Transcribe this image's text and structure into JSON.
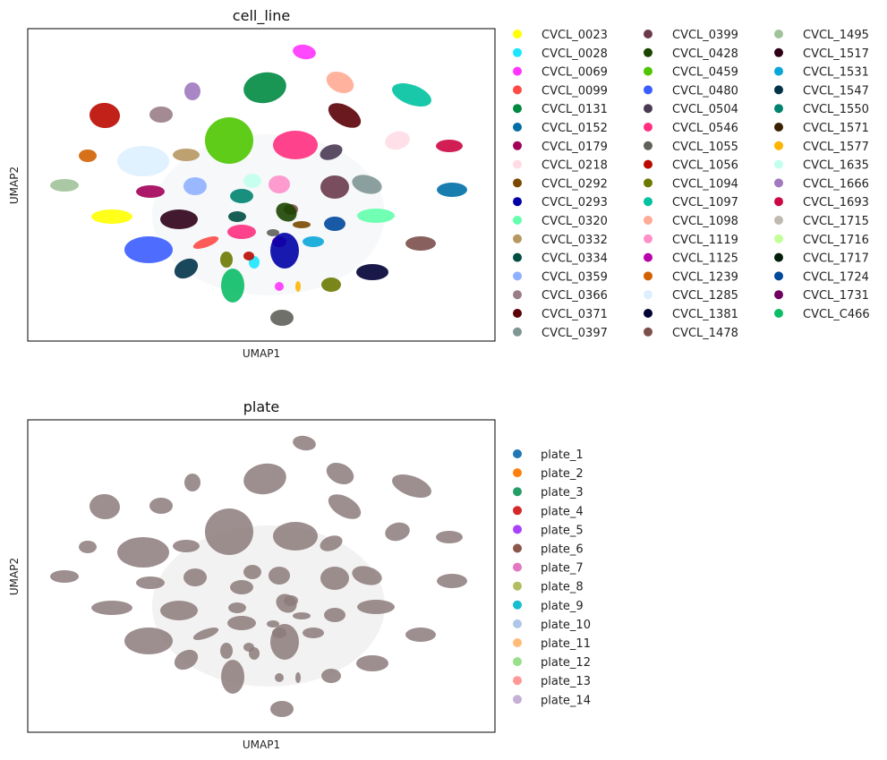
{
  "chart_data": [
    {
      "type": "scatter",
      "title": "cell_line",
      "xlabel": "UMAP1",
      "ylabel": "UMAP2",
      "grid": false,
      "ticks": false,
      "legend_placement": "right, 3 columns",
      "legend": [
        {
          "name": "CVCL_0023",
          "color": "#ffff00"
        },
        {
          "name": "CVCL_0028",
          "color": "#1ce6ff"
        },
        {
          "name": "CVCL_0069",
          "color": "#ff34ff"
        },
        {
          "name": "CVCL_0099",
          "color": "#ff4a46"
        },
        {
          "name": "CVCL_0131",
          "color": "#008941"
        },
        {
          "name": "CVCL_0152",
          "color": "#006fa6"
        },
        {
          "name": "CVCL_0179",
          "color": "#a30059"
        },
        {
          "name": "CVCL_0218",
          "color": "#ffdbe5"
        },
        {
          "name": "CVCL_0292",
          "color": "#7a4900"
        },
        {
          "name": "CVCL_0293",
          "color": "#0000a6"
        },
        {
          "name": "CVCL_0320",
          "color": "#63ffac"
        },
        {
          "name": "CVCL_0332",
          "color": "#b79762"
        },
        {
          "name": "CVCL_0334",
          "color": "#004d43"
        },
        {
          "name": "CVCL_0359",
          "color": "#8fb0ff"
        },
        {
          "name": "CVCL_0366",
          "color": "#997d87"
        },
        {
          "name": "CVCL_0371",
          "color": "#5a0007"
        },
        {
          "name": "CVCL_0397",
          "color": "#809693"
        },
        {
          "name": "CVCL_0399",
          "color": "#6a3a4c"
        },
        {
          "name": "CVCL_0428",
          "color": "#1b4400"
        },
        {
          "name": "CVCL_0459",
          "color": "#4fc601"
        },
        {
          "name": "CVCL_0480",
          "color": "#3b5dff"
        },
        {
          "name": "CVCL_0504",
          "color": "#4a3b53"
        },
        {
          "name": "CVCL_0546",
          "color": "#ff2f80"
        },
        {
          "name": "CVCL_1055",
          "color": "#61615a"
        },
        {
          "name": "CVCL_1056",
          "color": "#ba0900"
        },
        {
          "name": "CVCL_1094",
          "color": "#6b7900"
        },
        {
          "name": "CVCL_1097",
          "color": "#00c2a0"
        },
        {
          "name": "CVCL_1098",
          "color": "#ffaa92"
        },
        {
          "name": "CVCL_1119",
          "color": "#ff90c9"
        },
        {
          "name": "CVCL_1125",
          "color": "#b903aa"
        },
        {
          "name": "CVCL_1239",
          "color": "#d16100"
        },
        {
          "name": "CVCL_1285",
          "color": "#ddefff"
        },
        {
          "name": "CVCL_1381",
          "color": "#000035"
        },
        {
          "name": "CVCL_1478",
          "color": "#7b4f4b"
        },
        {
          "name": "CVCL_1495",
          "color": "#a1c299"
        },
        {
          "name": "CVCL_1517",
          "color": "#300018"
        },
        {
          "name": "CVCL_1531",
          "color": "#0aa6d8"
        },
        {
          "name": "CVCL_1547",
          "color": "#013349"
        },
        {
          "name": "CVCL_1550",
          "color": "#00846f"
        },
        {
          "name": "CVCL_1571",
          "color": "#372101"
        },
        {
          "name": "CVCL_1577",
          "color": "#ffb500"
        },
        {
          "name": "CVCL_1635",
          "color": "#c2ffed"
        },
        {
          "name": "CVCL_1666",
          "color": "#a079bf"
        },
        {
          "name": "CVCL_1693",
          "color": "#cc0744"
        },
        {
          "name": "CVCL_1715",
          "color": "#c0b9b2"
        },
        {
          "name": "CVCL_1716",
          "color": "#c2ff99"
        },
        {
          "name": "CVCL_1717",
          "color": "#001e09"
        },
        {
          "name": "CVCL_1724",
          "color": "#00489c"
        },
        {
          "name": "CVCL_1731",
          "color": "#6f0062"
        },
        {
          "name": "CVCL_C466",
          "color": "#0cbd66"
        }
      ]
    },
    {
      "type": "scatter",
      "title": "plate",
      "xlabel": "UMAP1",
      "ylabel": "UMAP2",
      "grid": false,
      "ticks": false,
      "point_color": "#8c7b7b",
      "legend_placement": "right, 1 column",
      "legend": [
        {
          "name": "plate_1",
          "color": "#1f77b4"
        },
        {
          "name": "plate_2",
          "color": "#ff7f0e"
        },
        {
          "name": "plate_3",
          "color": "#279e68"
        },
        {
          "name": "plate_4",
          "color": "#d62728"
        },
        {
          "name": "plate_5",
          "color": "#aa40fc"
        },
        {
          "name": "plate_6",
          "color": "#8c564b"
        },
        {
          "name": "plate_7",
          "color": "#e377c2"
        },
        {
          "name": "plate_8",
          "color": "#b5bd61"
        },
        {
          "name": "plate_9",
          "color": "#17becf"
        },
        {
          "name": "plate_10",
          "color": "#aec7e8"
        },
        {
          "name": "plate_11",
          "color": "#ffbb78"
        },
        {
          "name": "plate_12",
          "color": "#98df8a"
        },
        {
          "name": "plate_13",
          "color": "#ff9896"
        },
        {
          "name": "plate_14",
          "color": "#c5b0d5"
        }
      ]
    }
  ]
}
